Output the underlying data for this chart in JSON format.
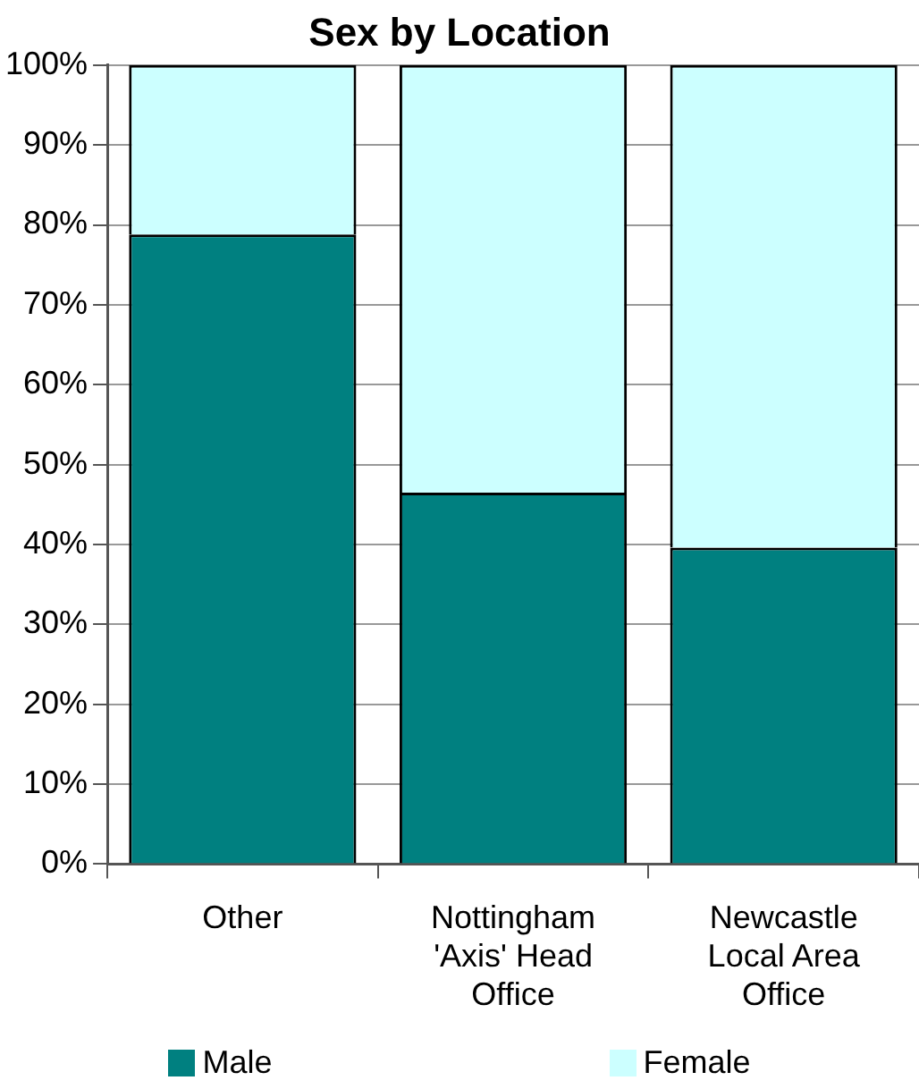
{
  "chart_data": {
    "type": "bar",
    "title": "Sex by Location",
    "categories": [
      "Other",
      "Nottingham 'Axis' Head Office",
      "Newcastle Local Area Office"
    ],
    "stacked": true,
    "series": [
      {
        "name": "Male",
        "color": "#008080",
        "values": [
          78.8,
          46.5,
          39.6
        ]
      },
      {
        "name": "Female",
        "color": "#ccffff",
        "values": [
          21.2,
          53.5,
          60.4
        ]
      }
    ],
    "ylim": [
      0,
      100
    ],
    "yticks": [
      {
        "value": 0,
        "label": "0%"
      },
      {
        "value": 10,
        "label": "10%"
      },
      {
        "value": 20,
        "label": "20%"
      },
      {
        "value": 30,
        "label": "30%"
      },
      {
        "value": 40,
        "label": "40%"
      },
      {
        "value": 50,
        "label": "50%"
      },
      {
        "value": 60,
        "label": "60%"
      },
      {
        "value": 70,
        "label": "70%"
      },
      {
        "value": 80,
        "label": "80%"
      },
      {
        "value": 90,
        "label": "90%"
      },
      {
        "value": 100,
        "label": "100%"
      }
    ],
    "grid": "y",
    "legend": "bottom"
  }
}
